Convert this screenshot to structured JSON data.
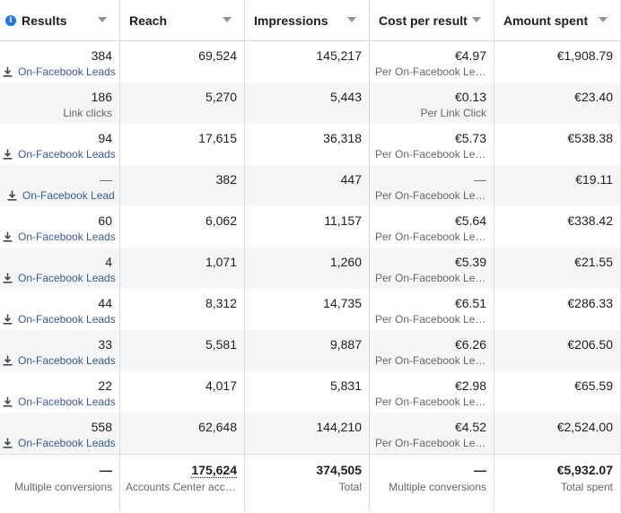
{
  "columns": [
    {
      "label": "Results",
      "has_info": true
    },
    {
      "label": "Reach"
    },
    {
      "label": "Impressions"
    },
    {
      "label": "Cost per result"
    },
    {
      "label": "Amount spent"
    }
  ],
  "rows": [
    {
      "results": "384",
      "results_sub": "On-Facebook Leads",
      "results_link": true,
      "reach": "69,524",
      "impressions": "145,217",
      "cost": "€4.97",
      "cost_sub": "Per On-Facebook Leads",
      "spent": "€1,908.79"
    },
    {
      "results": "186",
      "results_sub": "Link clicks",
      "results_link": false,
      "reach": "5,270",
      "impressions": "5,443",
      "cost": "€0.13",
      "cost_sub": "Per Link Click",
      "spent": "€23.40"
    },
    {
      "results": "94",
      "results_sub": "On-Facebook Leads",
      "results_link": true,
      "reach": "17,615",
      "impressions": "36,318",
      "cost": "€5.73",
      "cost_sub": "Per On-Facebook Leads",
      "spent": "€538.38"
    },
    {
      "results": "—",
      "results_sub": "On-Facebook Lead",
      "results_link": true,
      "single": true,
      "reach": "382",
      "impressions": "447",
      "cost": "—",
      "cost_sub": "Per On-Facebook Leads",
      "spent": "€19.11"
    },
    {
      "results": "60",
      "results_sub": "On-Facebook Leads",
      "results_link": true,
      "reach": "6,062",
      "impressions": "11,157",
      "cost": "€5.64",
      "cost_sub": "Per On-Facebook Leads",
      "spent": "€338.42"
    },
    {
      "results": "4",
      "results_sub": "On-Facebook Leads",
      "results_link": true,
      "reach": "1,071",
      "impressions": "1,260",
      "cost": "€5.39",
      "cost_sub": "Per On-Facebook Leads",
      "spent": "€21.55"
    },
    {
      "results": "44",
      "results_sub": "On-Facebook Leads",
      "results_link": true,
      "reach": "8,312",
      "impressions": "14,735",
      "cost": "€6.51",
      "cost_sub": "Per On-Facebook Leads",
      "spent": "€286.33"
    },
    {
      "results": "33",
      "results_sub": "On-Facebook Leads",
      "results_link": true,
      "reach": "5,581",
      "impressions": "9,887",
      "cost": "€6.26",
      "cost_sub": "Per On-Facebook Leads",
      "spent": "€206.50"
    },
    {
      "results": "22",
      "results_sub": "On-Facebook Leads",
      "results_link": true,
      "reach": "4,017",
      "impressions": "5,831",
      "cost": "€2.98",
      "cost_sub": "Per On-Facebook Leads",
      "spent": "€65.59"
    },
    {
      "results": "558",
      "results_sub": "On-Facebook Leads",
      "results_link": true,
      "reach": "62,648",
      "impressions": "144,210",
      "cost": "€4.52",
      "cost_sub": "Per On-Facebook Leads",
      "spent": "€2,524.00"
    }
  ],
  "totals": {
    "results": "—",
    "results_sub": "Multiple conversions",
    "reach": "175,624",
    "reach_sub": "Accounts Center accounts",
    "impressions": "374,505",
    "impressions_sub": "Total",
    "cost": "—",
    "cost_sub": "Multiple conversions",
    "spent": "€5,932.07",
    "spent_sub": "Total spent"
  },
  "icons": {
    "info": "info-icon",
    "download": "download-icon",
    "sort": "chevron-down-icon"
  },
  "colors": {
    "link": "#385898",
    "info": "#1877f2",
    "muted": "#606770",
    "border": "#dadde1",
    "alt_row": "#f5f6f7"
  }
}
